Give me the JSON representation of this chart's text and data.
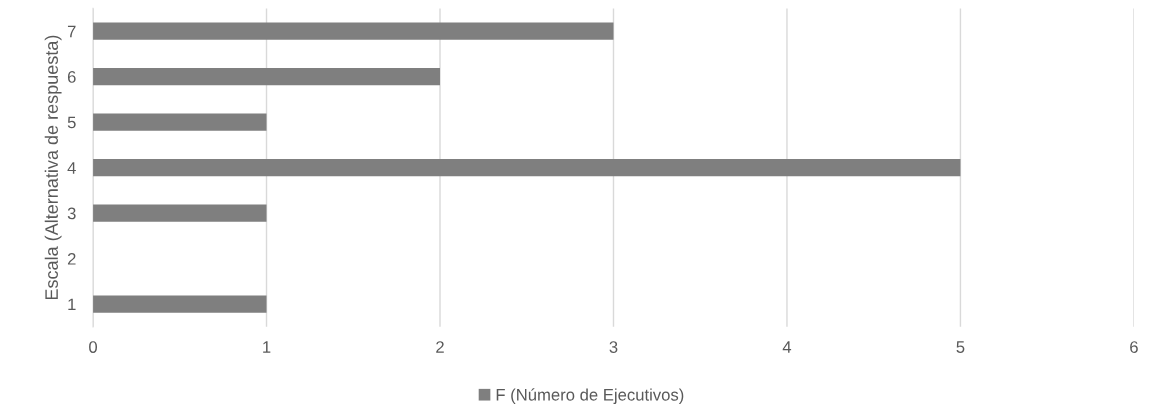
{
  "chart_data": {
    "type": "bar",
    "orientation": "horizontal",
    "ylabel": "Escala (Alternativa de respuesta)",
    "categories": [
      "7",
      "6",
      "5",
      "4",
      "3",
      "2",
      "1"
    ],
    "series": [
      {
        "name": "F (Número de Ejecutivos)",
        "color": "#7f7f7f",
        "values": [
          3,
          2,
          1,
          5,
          1,
          0,
          1
        ]
      }
    ],
    "xlim": [
      0,
      6
    ],
    "xticks": [
      0,
      1,
      2,
      3,
      4,
      5,
      6
    ],
    "grid": "x",
    "legend": "bottom"
  }
}
